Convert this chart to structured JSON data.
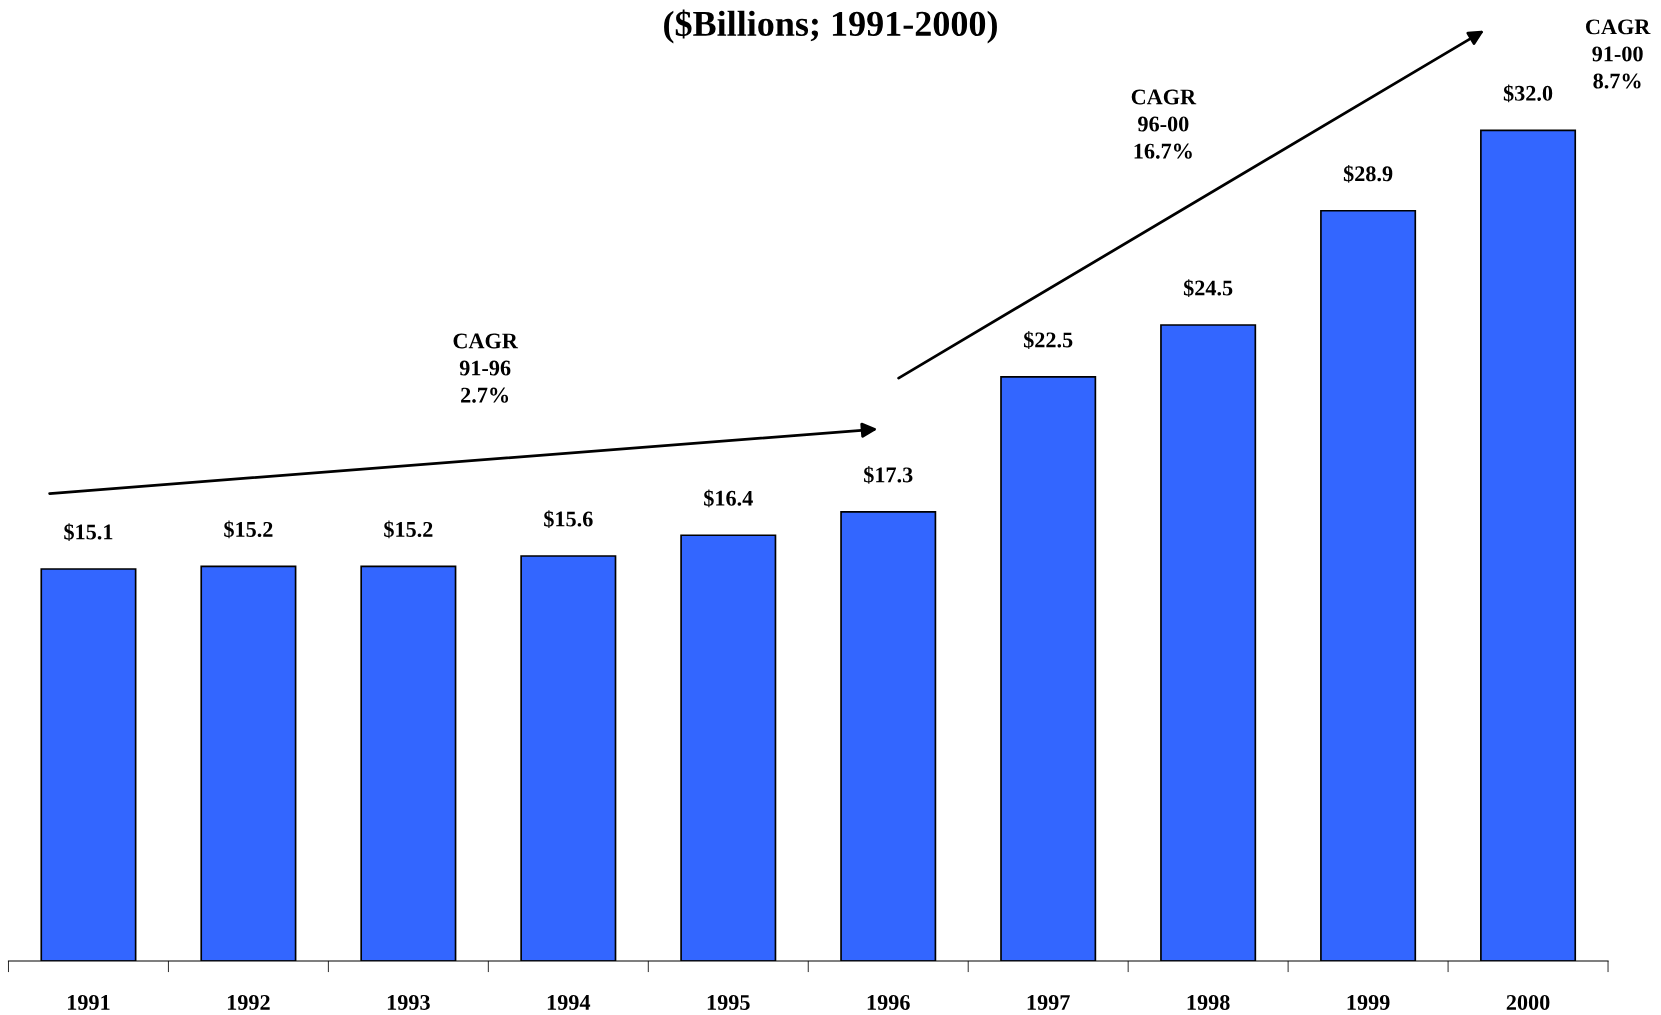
{
  "chart_data": {
    "type": "bar",
    "title": "($Billions; 1991-2000)",
    "categories": [
      "1991",
      "1992",
      "1993",
      "1994",
      "1995",
      "1996",
      "1997",
      "1998",
      "1999",
      "2000"
    ],
    "values": [
      15.1,
      15.2,
      15.2,
      15.6,
      16.4,
      17.3,
      22.5,
      24.5,
      28.9,
      32.0
    ],
    "value_labels": [
      "$15.1",
      "$15.2",
      "$15.2",
      "$15.6",
      "$16.4",
      "$17.3",
      "$22.5",
      "$24.5",
      "$28.9",
      "$32.0"
    ],
    "color": "#3366ff",
    "grid": false,
    "legend": false,
    "annotations": [
      "CAGR\n91-96\n2.7%",
      "CAGR\n96-00\n16.7%",
      "CAGR\n91-00\n8.7%"
    ]
  }
}
